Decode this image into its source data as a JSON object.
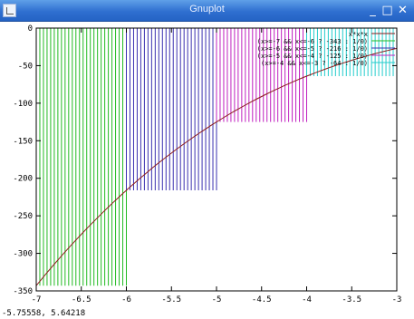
{
  "window": {
    "title": "Gnuplot"
  },
  "status": {
    "coords": "-5.75558,  5.64218"
  },
  "chart_data": {
    "type": "line",
    "xlim": [
      -7,
      -3
    ],
    "ylim": [
      -350,
      0
    ],
    "x_ticks": [
      -7,
      -6.5,
      -6,
      -5.5,
      -5,
      -4.5,
      -4,
      -3.5,
      -3
    ],
    "y_ticks": [
      0,
      -50,
      -100,
      -150,
      -200,
      -250,
      -300,
      -350
    ],
    "x_tick_labels": [
      "-7",
      "-6.5",
      "-6",
      "-5.5",
      "-5",
      "-4.5",
      "-4",
      "-3.5",
      "-3"
    ],
    "y_tick_labels": [
      "0",
      "-50",
      "-100",
      "-150",
      "-200",
      "-250",
      "-300",
      "-350"
    ],
    "grid": false,
    "legend_position": "top-right",
    "series": [
      {
        "name": "x*x*x",
        "color": "#8b1a1a",
        "style": "line",
        "function": "x^3",
        "x_range": [
          -7,
          -3
        ]
      },
      {
        "name": "(x>=-7 && x<=-6 ? -343 : 1/0)",
        "color": "#22bb22",
        "style": "impulses",
        "x_range": [
          -7,
          -6
        ],
        "value": -343
      },
      {
        "name": "(x>=-6 && x<=-5 ? -216 : 1/0)",
        "color": "#3a30b0",
        "style": "impulses",
        "x_range": [
          -6,
          -5
        ],
        "value": -216
      },
      {
        "name": "(x>=-5 && x<=-4 ? -125 : 1/0)",
        "color": "#c020c0",
        "style": "impulses",
        "x_range": [
          -5,
          -4
        ],
        "value": -125
      },
      {
        "name": "(x>=-4 && x<=-3 ? -64 : 1/0)",
        "color": "#22cccc",
        "style": "impulses",
        "x_range": [
          -4,
          -3
        ],
        "value": -64
      }
    ]
  }
}
